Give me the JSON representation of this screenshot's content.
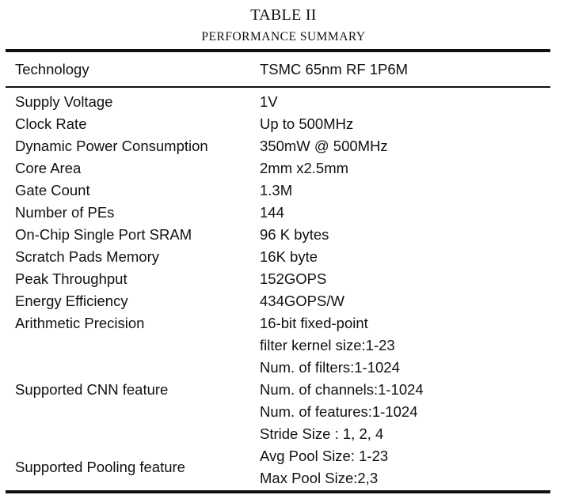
{
  "table_label": "TABLE II",
  "table_title": "PERFORMANCE SUMMARY",
  "header": {
    "parameter": "Technology",
    "value": "TSMC 65nm RF 1P6M"
  },
  "rows": [
    {
      "parameter": "Supply Voltage",
      "value": "1V"
    },
    {
      "parameter": "Clock Rate",
      "value": "Up to 500MHz"
    },
    {
      "parameter": "Dynamic Power Consumption",
      "value": "350mW @ 500MHz"
    },
    {
      "parameter": "Core Area",
      "value": "2mm x2.5mm"
    },
    {
      "parameter": "Gate Count",
      "value": "1.3M"
    },
    {
      "parameter": "Number of PEs",
      "value": "144"
    },
    {
      "parameter": "On-Chip Single Port SRAM",
      "value": "96 K bytes"
    },
    {
      "parameter": "Scratch Pads Memory",
      "value": "16K byte"
    },
    {
      "parameter": "Peak Throughput",
      "value": "152GOPS"
    },
    {
      "parameter": "Energy Efficiency",
      "value": "434GOPS/W"
    },
    {
      "parameter": "Arithmetic Precision",
      "value": "16-bit fixed-point"
    }
  ],
  "cnn_feature": {
    "parameter": "Supported CNN feature",
    "values": [
      "filter kernel size:1-23",
      "Num. of filters:1-1024",
      "Num. of channels:1-1024",
      "Num. of features:1-1024",
      "Stride Size : 1, 2, 4"
    ]
  },
  "pooling_feature": {
    "parameter": "Supported Pooling feature",
    "values": [
      "Avg Pool Size: 1-23",
      "Max Pool Size:2,3"
    ]
  }
}
